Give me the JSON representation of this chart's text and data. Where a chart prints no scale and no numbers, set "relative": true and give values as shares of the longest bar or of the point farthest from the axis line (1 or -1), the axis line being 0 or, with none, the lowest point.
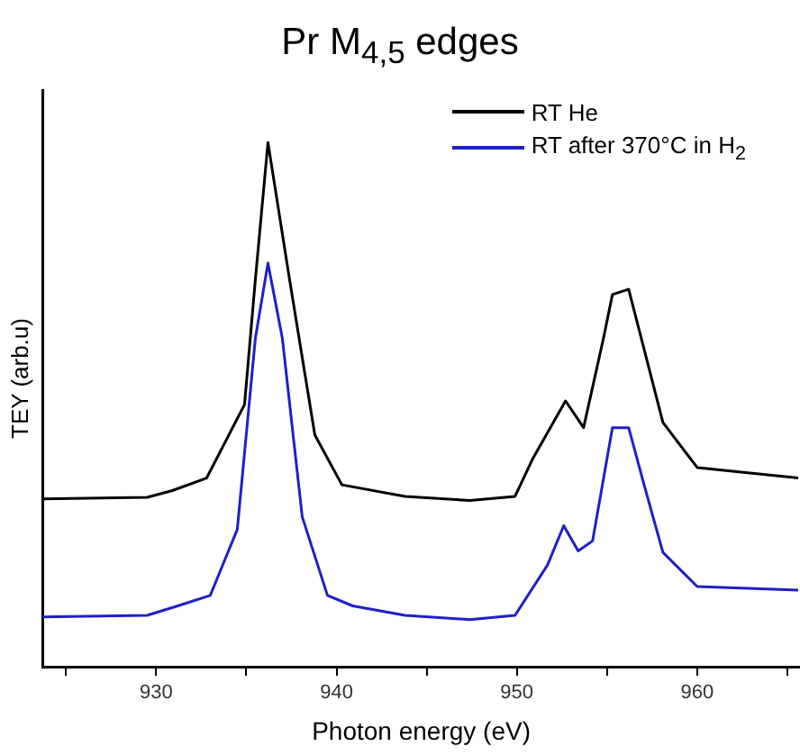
{
  "chart_data": {
    "type": "line",
    "title": "Pr M$_{4,5}$ edges",
    "xlabel": "Photon energy (eV)",
    "ylabel": "TEY (arb.u)",
    "relative": true,
    "xlim": [
      923.7,
      965.7
    ],
    "xticks": [
      {
        "value": 925,
        "label": null
      },
      930,
      {
        "value": 935,
        "label": null
      },
      940,
      {
        "value": 945,
        "label": null
      },
      950,
      {
        "value": 955,
        "label": null
      },
      960,
      {
        "value": 965,
        "label": null
      }
    ],
    "grid": false,
    "legend": "top right",
    "marker": "none",
    "line_style": "solid",
    "series": [
      {
        "name": "RT He",
        "color": "#000000",
        "x": [
          923.7,
          929.5,
          930.9,
          932.8,
          934.9,
          935.5,
          936.2,
          937.4,
          938.8,
          940.3,
          943.8,
          947.4,
          949.9,
          950.9,
          952.7,
          953.7,
          954.8,
          955.3,
          956.2,
          958.1,
          960,
          965.6
        ],
        "values": [
          0.32,
          0.323,
          0.336,
          0.36,
          0.5,
          0.738,
          1.0,
          0.738,
          0.442,
          0.347,
          0.325,
          0.317,
          0.325,
          0.398,
          0.507,
          0.456,
          0.626,
          0.71,
          0.72,
          0.466,
          0.38,
          0.36
        ]
      },
      {
        "name": "RT after 370°C in H$_{2}$",
        "color": "#1f1fc8",
        "x": [
          923.7,
          929.5,
          931.2,
          933.0,
          934.5,
          935.5,
          936.2,
          937.0,
          938.1,
          939.5,
          940.9,
          943.8,
          947.4,
          949.9,
          951.7,
          952.6,
          953.4,
          954.2,
          955.3,
          956.2,
          957.0,
          958.1,
          960,
          965.6
        ],
        "values": [
          0.095,
          0.098,
          0.116,
          0.136,
          0.262,
          0.626,
          0.77,
          0.626,
          0.286,
          0.136,
          0.116,
          0.098,
          0.09,
          0.098,
          0.194,
          0.269,
          0.221,
          0.24,
          0.456,
          0.456,
          0.354,
          0.218,
          0.153,
          0.146
        ]
      }
    ]
  }
}
